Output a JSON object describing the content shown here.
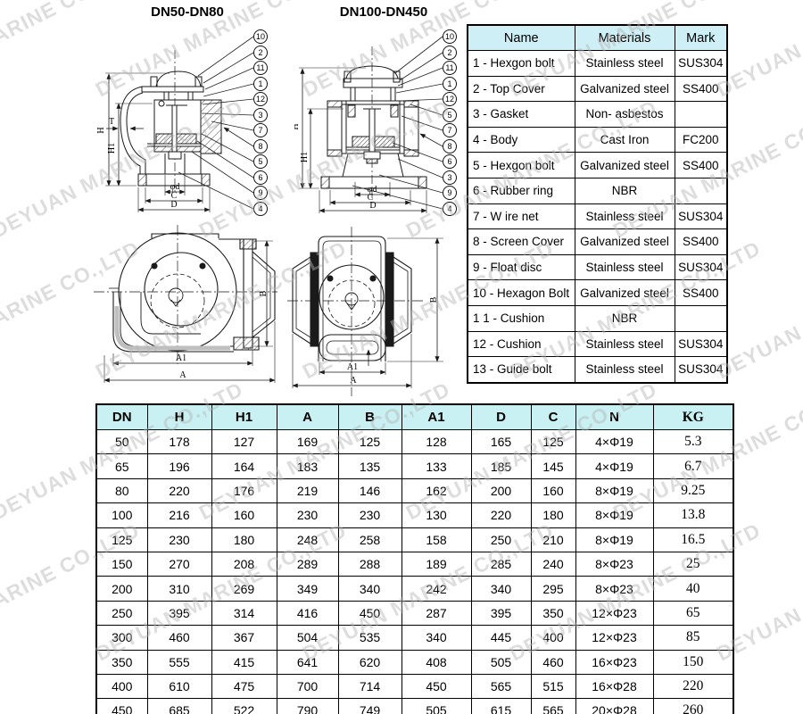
{
  "watermark": {
    "text": "DEYUAN MARINE CO.,LTD"
  },
  "colors": {
    "header_bg_materials": "#cdeff5",
    "header_bg_dimensions": "#c9f0f2",
    "line": "#1a1a1a",
    "watermark": "#b5b5b5"
  },
  "drawing_small": {
    "title": "DN50-DN80",
    "callouts": [
      "10",
      "2",
      "11",
      "1",
      "12",
      "3",
      "7",
      "8",
      "5",
      "6",
      "9",
      "4"
    ],
    "dim_h": "H",
    "dim_h1": "H1",
    "dim_t": "T",
    "dim_phid": "φd",
    "dim_c": "C",
    "dim_d": "D"
  },
  "drawing_large": {
    "title": "DN100-DN450",
    "callouts": [
      "10",
      "2",
      "11",
      "1",
      "12",
      "5",
      "7",
      "8",
      "6",
      "3",
      "9",
      "4"
    ],
    "dim_h": "H",
    "dim_h1": "H1",
    "dim_phid": "φd",
    "dim_c": "C",
    "dim_d": "D"
  },
  "top_view_small": {
    "dim_a1": "A1",
    "dim_a": "A",
    "dim_b": "B"
  },
  "top_view_large": {
    "dim_a1": "A1",
    "dim_a": "A",
    "dim_b": "B"
  },
  "materials_table": {
    "headers": [
      "Name",
      "Materials",
      "Mark"
    ],
    "rows": [
      [
        "1 - Hexgon bolt",
        "Stainless steel",
        "SUS304"
      ],
      [
        "2 - Top Cover",
        "Galvanized steel",
        "SS400"
      ],
      [
        "3 - Gasket",
        "Non- asbestos",
        ""
      ],
      [
        "4 - Body",
        "Cast Iron",
        "FC200"
      ],
      [
        "5 - Hexgon bolt",
        "Galvanized steel",
        "SS400"
      ],
      [
        "6 - Rubber ring",
        "NBR",
        ""
      ],
      [
        "7 - W ire net",
        "Stainless steel",
        "SUS304"
      ],
      [
        "8 - Screen Cover",
        "Galvanized steel",
        "SS400"
      ],
      [
        "9 - Float disc",
        "Stainless steel",
        "SUS304"
      ],
      [
        "10 - Hexagon Bolt",
        "Galvanized steel",
        "SS400"
      ],
      [
        "1 1 - Cushion",
        "NBR",
        ""
      ],
      [
        "12 - Cushion",
        "Stainless steel",
        "SUS304"
      ],
      [
        "13 - Guide bolt",
        "Stainless steel",
        "SUS304"
      ]
    ]
  },
  "dimensions_table": {
    "headers": [
      "DN",
      "H",
      "H1",
      "A",
      "B",
      "A1",
      "D",
      "C",
      "N",
      "KG"
    ],
    "rows": [
      [
        "50",
        "178",
        "127",
        "169",
        "125",
        "128",
        "165",
        "125",
        "4×Φ19",
        "5.3"
      ],
      [
        "65",
        "196",
        "164",
        "183",
        "135",
        "133",
        "185",
        "145",
        "4×Φ19",
        "6.7"
      ],
      [
        "80",
        "220",
        "176",
        "219",
        "146",
        "162",
        "200",
        "160",
        "8×Φ19",
        "9.25"
      ],
      [
        "100",
        "216",
        "160",
        "230",
        "230",
        "130",
        "220",
        "180",
        "8×Φ19",
        "13.8"
      ],
      [
        "125",
        "230",
        "180",
        "248",
        "258",
        "158",
        "250",
        "210",
        "8×Φ19",
        "16.5"
      ],
      [
        "150",
        "270",
        "208",
        "289",
        "288",
        "189",
        "285",
        "240",
        "8×Φ23",
        "25"
      ],
      [
        "200",
        "310",
        "269",
        "349",
        "340",
        "242",
        "340",
        "295",
        "8×Φ23",
        "40"
      ],
      [
        "250",
        "395",
        "314",
        "416",
        "450",
        "287",
        "395",
        "350",
        "12×Φ23",
        "65"
      ],
      [
        "300",
        "460",
        "367",
        "504",
        "535",
        "340",
        "445",
        "400",
        "12×Φ23",
        "85"
      ],
      [
        "350",
        "555",
        "415",
        "641",
        "620",
        "408",
        "505",
        "460",
        "16×Φ23",
        "150"
      ],
      [
        "400",
        "610",
        "475",
        "700",
        "714",
        "450",
        "565",
        "515",
        "16×Φ28",
        "220"
      ],
      [
        "450",
        "685",
        "522",
        "790",
        "749",
        "505",
        "615",
        "565",
        "20×Φ28",
        "260"
      ]
    ]
  }
}
